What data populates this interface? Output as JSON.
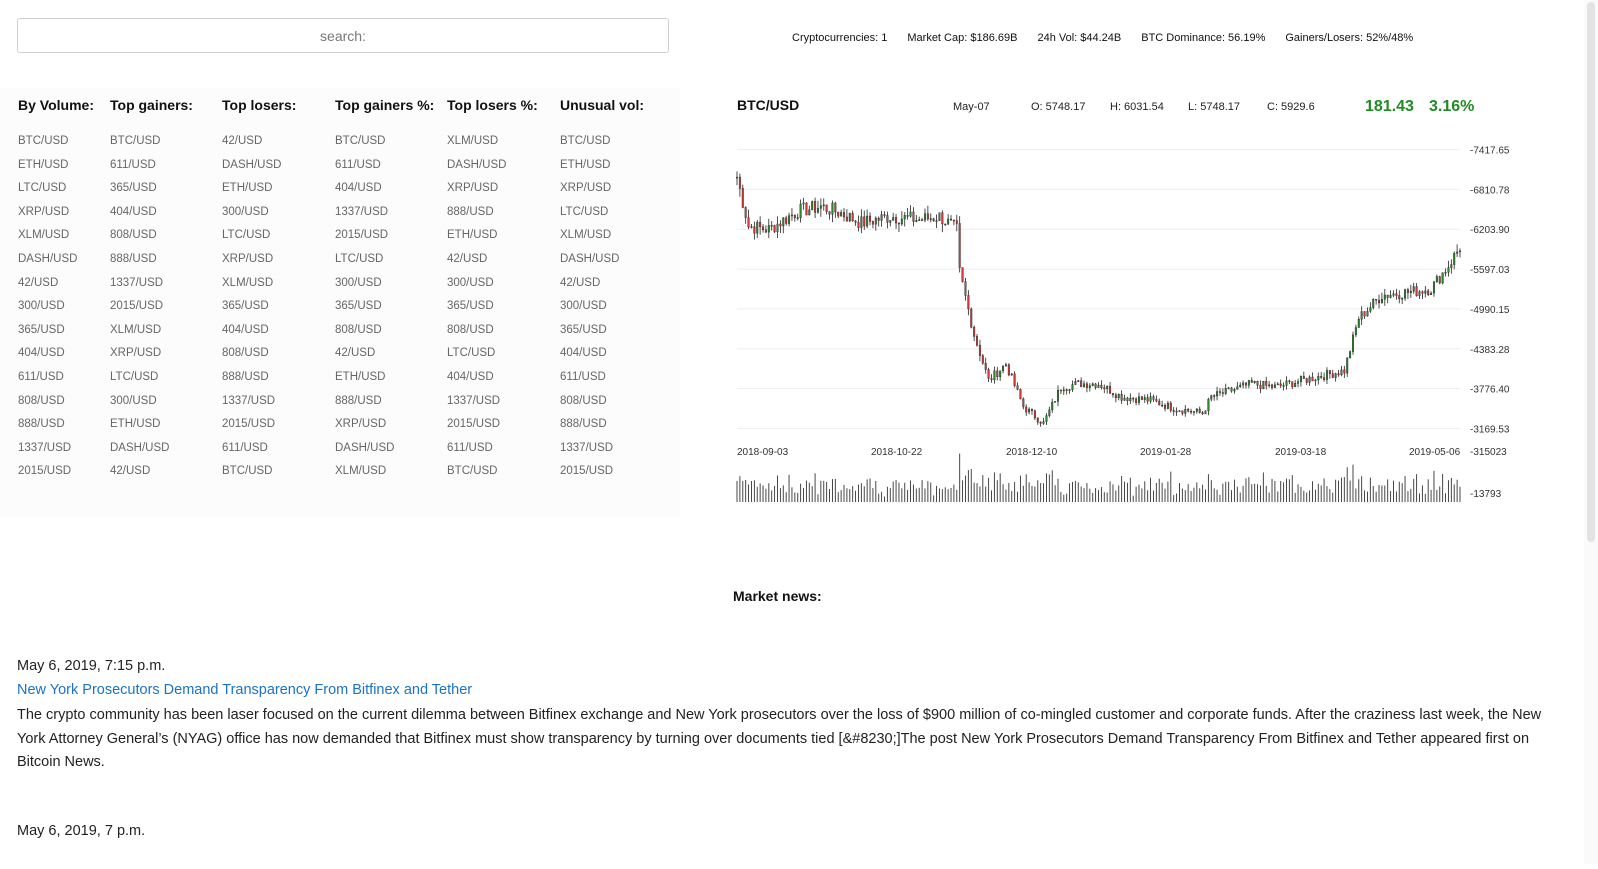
{
  "search": {
    "placeholder": "search:"
  },
  "stats": {
    "cryptocurrencies": "Cryptocurrencies: 1",
    "market_cap": "Market Cap: $186.69B",
    "vol_24h": "24h Vol: $44.24B",
    "btc_dominance": "BTC Dominance: 56.19%",
    "gainers_losers": "Gainers/Losers: 52%/48%"
  },
  "lists": [
    {
      "header": "By Volume:",
      "items": [
        "BTC/USD",
        "ETH/USD",
        "LTC/USD",
        "XRP/USD",
        "XLM/USD",
        "DASH/USD",
        "42/USD",
        "300/USD",
        "365/USD",
        "404/USD",
        "611/USD",
        "808/USD",
        "888/USD",
        "1337/USD",
        "2015/USD"
      ]
    },
    {
      "header": "Top gainers:",
      "items": [
        "BTC/USD",
        "611/USD",
        "365/USD",
        "404/USD",
        "808/USD",
        "888/USD",
        "1337/USD",
        "2015/USD",
        "XLM/USD",
        "XRP/USD",
        "LTC/USD",
        "300/USD",
        "ETH/USD",
        "DASH/USD",
        "42/USD"
      ]
    },
    {
      "header": "Top losers:",
      "items": [
        "42/USD",
        "DASH/USD",
        "ETH/USD",
        "300/USD",
        "LTC/USD",
        "XRP/USD",
        "XLM/USD",
        "365/USD",
        "404/USD",
        "808/USD",
        "888/USD",
        "1337/USD",
        "2015/USD",
        "611/USD",
        "BTC/USD"
      ]
    },
    {
      "header": "Top gainers %:",
      "items": [
        "BTC/USD",
        "611/USD",
        "404/USD",
        "1337/USD",
        "2015/USD",
        "LTC/USD",
        "300/USD",
        "365/USD",
        "808/USD",
        "42/USD",
        "ETH/USD",
        "888/USD",
        "XRP/USD",
        "DASH/USD",
        "XLM/USD"
      ]
    },
    {
      "header": "Top losers %:",
      "items": [
        "XLM/USD",
        "DASH/USD",
        "XRP/USD",
        "888/USD",
        "ETH/USD",
        "42/USD",
        "300/USD",
        "365/USD",
        "808/USD",
        "LTC/USD",
        "404/USD",
        "1337/USD",
        "2015/USD",
        "611/USD",
        "BTC/USD"
      ]
    },
    {
      "header": "Unusual vol:",
      "items": [
        "BTC/USD",
        "ETH/USD",
        "XRP/USD",
        "LTC/USD",
        "XLM/USD",
        "DASH/USD",
        "42/USD",
        "300/USD",
        "365/USD",
        "404/USD",
        "611/USD",
        "808/USD",
        "888/USD",
        "1337/USD",
        "2015/USD"
      ]
    }
  ],
  "chart_header": {
    "pair": "BTC/USD",
    "date": "May-07",
    "open": "O: 5748.17",
    "high": "H: 6031.54",
    "low": "L: 5748.17",
    "close": "C: 5929.6",
    "change": "181.43",
    "change_pct": "3.16%",
    "change_color": "#1f8b24"
  },
  "chart_data": {
    "type": "candlestick",
    "series_name": "BTC/USD",
    "x_ticks": [
      "2018-09-03",
      "2018-10-22",
      "2018-12-10",
      "2019-01-28",
      "2019-03-18",
      "2019-05-06"
    ],
    "y_ticks": [
      7417.65,
      6810.78,
      6203.9,
      5597.03,
      4990.15,
      4383.28,
      3776.4,
      3169.53
    ],
    "y_tick_labels": [
      "7417.65",
      "6810.78",
      "6203.90",
      "5597.03",
      "4990.15",
      "4383.28",
      "3776.40",
      "3169.53"
    ],
    "ylim": [
      3069.53,
      7517.65
    ],
    "volume_ticks": [
      "315023",
      "13793"
    ],
    "volume_ylim": [
      13793,
      315023
    ],
    "up_color": "#2e8b2e",
    "down_color": "#d43c3c",
    "grid": true,
    "close_anchors": [
      {
        "date": "2018-08-30",
        "close": 7000
      },
      {
        "date": "2018-09-03",
        "close": 6250
      },
      {
        "date": "2018-09-10",
        "close": 6200
      },
      {
        "date": "2018-09-20",
        "close": 6480
      },
      {
        "date": "2018-09-28",
        "close": 6550
      },
      {
        "date": "2018-10-05",
        "close": 6450
      },
      {
        "date": "2018-10-12",
        "close": 6300
      },
      {
        "date": "2018-10-22",
        "close": 6400
      },
      {
        "date": "2018-11-01",
        "close": 6350
      },
      {
        "date": "2018-11-08",
        "close": 6400
      },
      {
        "date": "2018-11-14",
        "close": 6200
      },
      {
        "date": "2018-11-15",
        "close": 5550
      },
      {
        "date": "2018-11-20",
        "close": 4600
      },
      {
        "date": "2018-11-25",
        "close": 3900
      },
      {
        "date": "2018-12-01",
        "close": 4150
      },
      {
        "date": "2018-12-07",
        "close": 3500
      },
      {
        "date": "2018-12-14",
        "close": 3250
      },
      {
        "date": "2018-12-20",
        "close": 3800
      },
      {
        "date": "2018-12-26",
        "close": 3850
      },
      {
        "date": "2019-01-02",
        "close": 3850
      },
      {
        "date": "2019-01-10",
        "close": 3650
      },
      {
        "date": "2019-01-20",
        "close": 3600
      },
      {
        "date": "2019-01-28",
        "close": 3480
      },
      {
        "date": "2019-02-07",
        "close": 3400
      },
      {
        "date": "2019-02-10",
        "close": 3650
      },
      {
        "date": "2019-02-24",
        "close": 3850
      },
      {
        "date": "2019-03-04",
        "close": 3800
      },
      {
        "date": "2019-03-18",
        "close": 3950
      },
      {
        "date": "2019-03-28",
        "close": 4050
      },
      {
        "date": "2019-04-02",
        "close": 4850
      },
      {
        "date": "2019-04-10",
        "close": 5200
      },
      {
        "date": "2019-04-20",
        "close": 5250
      },
      {
        "date": "2019-04-27",
        "close": 5300
      },
      {
        "date": "2019-05-03",
        "close": 5650
      },
      {
        "date": "2019-05-07",
        "close": 5930
      }
    ]
  },
  "news": {
    "title": "Market news:",
    "items": [
      {
        "date": "May 6, 2019, 7:15 p.m.",
        "headline": "New York Prosecutors Demand Transparency From Bitfinex and Tether",
        "body": "The crypto community has been laser focused on the current dilemma between Bitfinex exchange and New York prosecutors over the loss of $900 million of co-mingled customer and corporate funds. After the craziness last week, the New York Attorney General’s (NYAG) office has now demanded that Bitfinex must show transparency by turning over documents tied [&#8230;]The post New York Prosecutors Demand Transparency From Bitfinex and Tether appeared first on Bitcoin News."
      },
      {
        "date": "May 6, 2019, 7 p.m.",
        "headline": "",
        "body": ""
      }
    ]
  }
}
